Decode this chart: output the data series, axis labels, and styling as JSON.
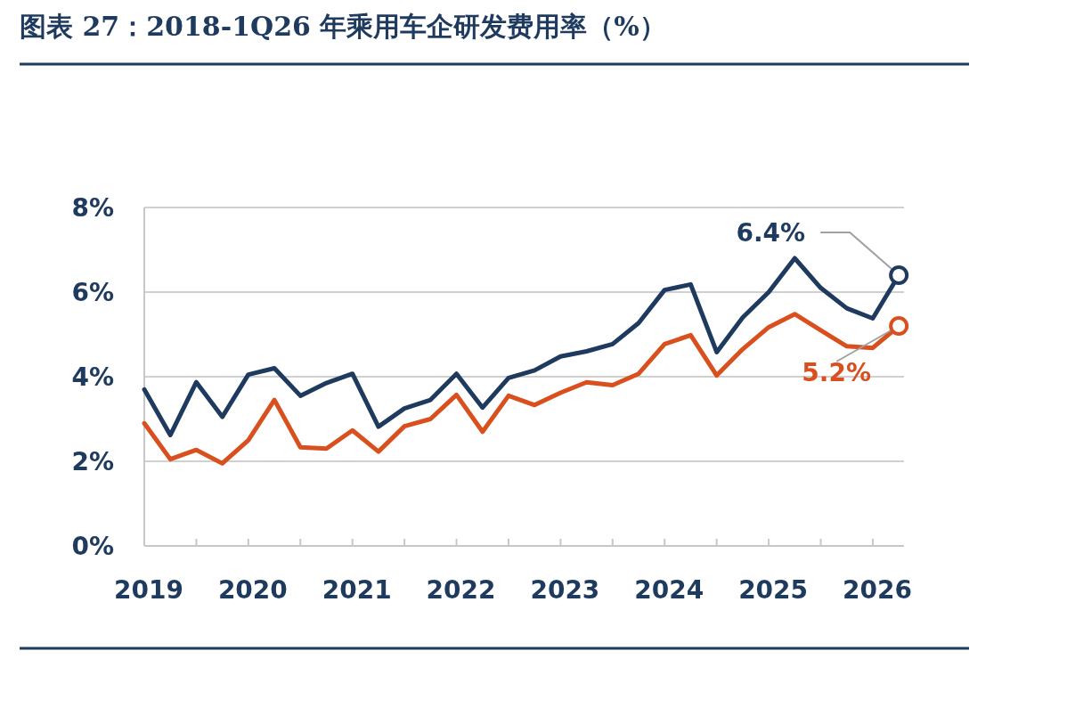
{
  "chart_data": {
    "type": "line",
    "title": "图表 27：2018-1Q26 年乘用车企研发费用率（%）",
    "x": [
      2019,
      2019.25,
      2019.5,
      2019.75,
      2020,
      2020.25,
      2020.5,
      2020.75,
      2021,
      2021.25,
      2021.5,
      2021.75,
      2022,
      2022.25,
      2022.5,
      2022.75,
      2023,
      2023.25,
      2023.5,
      2023.75,
      2024,
      2024.25,
      2024.5,
      2024.75,
      2025,
      2025.25,
      2025.5,
      2025.75,
      2026,
      2026.25
    ],
    "series": [
      {
        "color": "#d9501e",
        "values": [
          2.9,
          2.05,
          2.27,
          1.95,
          2.5,
          3.45,
          2.33,
          2.3,
          2.73,
          2.23,
          2.83,
          3.0,
          3.57,
          2.7,
          3.55,
          3.33,
          3.62,
          3.87,
          3.8,
          4.07,
          4.77,
          4.98,
          4.03,
          4.65,
          5.17,
          5.48,
          5.1,
          4.72,
          4.68,
          5.2
        ]
      },
      {
        "color": "#1f3a5f",
        "values": [
          3.7,
          2.62,
          3.87,
          3.05,
          4.05,
          4.2,
          3.55,
          3.85,
          4.07,
          2.82,
          3.25,
          3.45,
          4.07,
          3.27,
          3.97,
          4.15,
          4.48,
          4.6,
          4.77,
          5.27,
          6.05,
          6.18,
          4.58,
          5.4,
          6.0,
          6.8,
          6.1,
          5.62,
          5.38,
          6.4
        ]
      }
    ],
    "xlim": [
      2019,
      2026.3
    ],
    "xticks": [
      2019,
      {
        "value": 2019.5,
        "label": null
      },
      2020,
      {
        "value": 2020.5,
        "label": null
      },
      2021,
      {
        "value": 2021.5,
        "label": null
      },
      2022,
      {
        "value": 2022.5,
        "label": null
      },
      2023,
      {
        "value": 2023.5,
        "label": null
      },
      2024,
      {
        "value": 2024.5,
        "label": null
      },
      2025,
      {
        "value": 2025.5,
        "label": null
      },
      2026
    ],
    "ylim": [
      0,
      8
    ],
    "yticks": [
      {
        "value": 0,
        "label": "0%"
      },
      {
        "value": 2,
        "label": "2%"
      },
      {
        "value": 4,
        "label": "4%"
      },
      {
        "value": 6,
        "label": "6%"
      },
      {
        "value": 8,
        "label": "8%"
      }
    ],
    "grid": "y",
    "annotations": [
      {
        "text": "6.4%",
        "x": 2026.25,
        "y": 6.4
      },
      {
        "text": "5.2%",
        "x": 2026.25,
        "y": 5.2
      }
    ]
  }
}
